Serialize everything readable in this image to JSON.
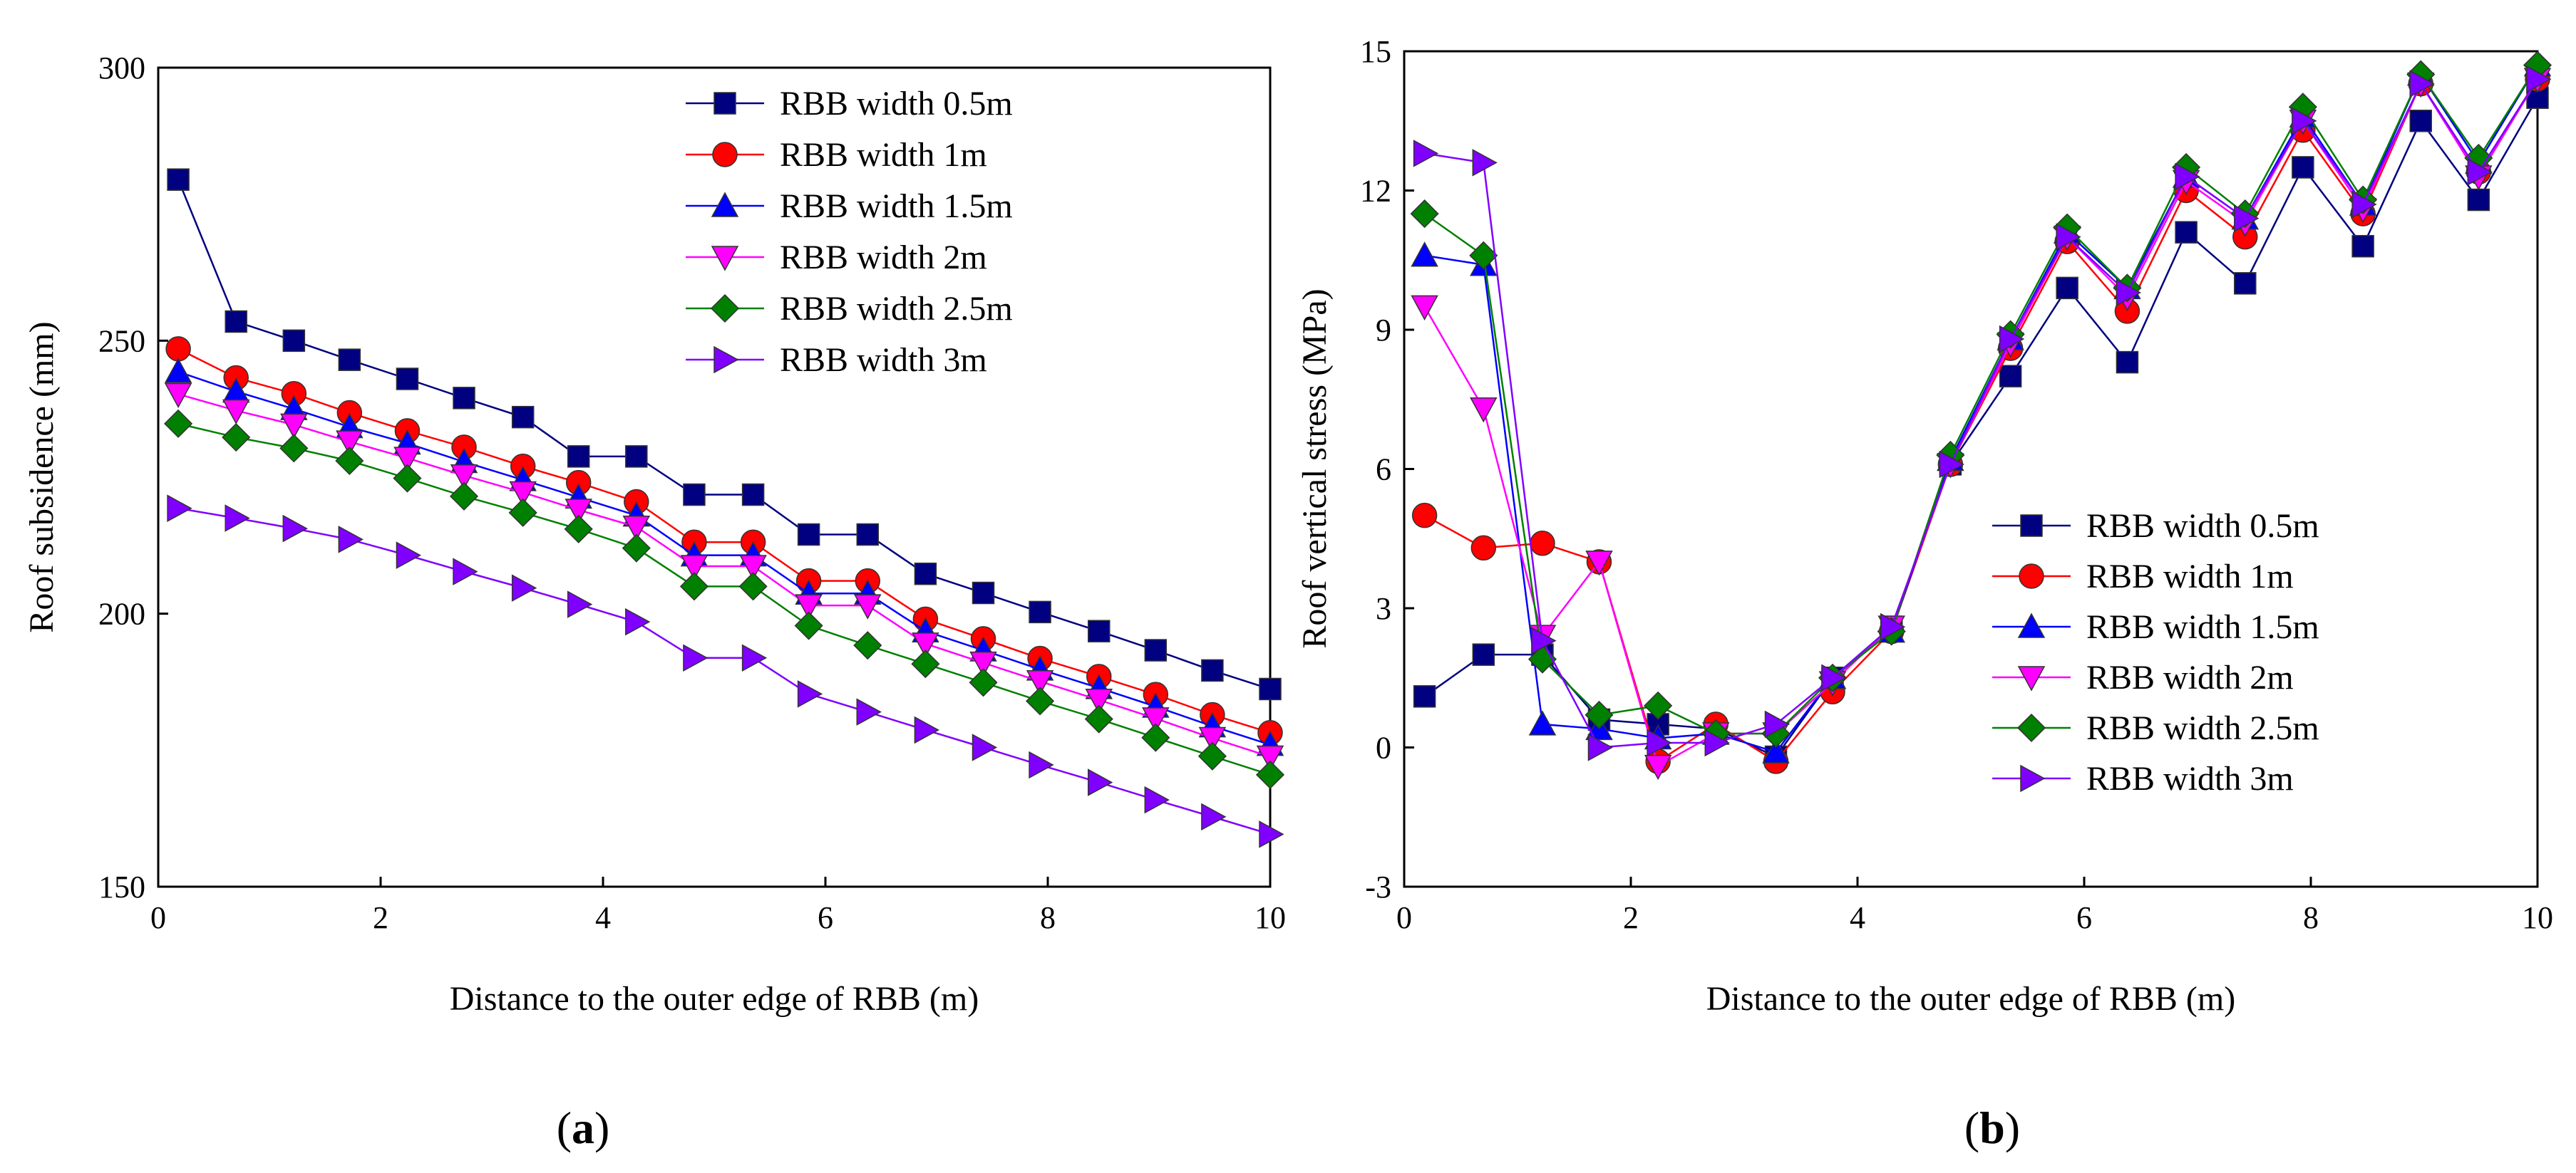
{
  "chart_data": [
    {
      "type": "line",
      "panel": "a",
      "xlabel": "Distance to the outer edge of RBB (m)",
      "ylabel": "Roof subsidence (mm)",
      "xlim": [
        0,
        10
      ],
      "ylim": [
        150,
        300
      ],
      "xticks": [
        0,
        2,
        4,
        6,
        8,
        10
      ],
      "yticks": [
        150,
        200,
        250,
        300
      ],
      "legend_position": "top-right",
      "x": [
        0.18,
        0.7,
        1.22,
        1.72,
        2.24,
        2.75,
        3.28,
        3.78,
        4.3,
        4.82,
        5.35,
        5.85,
        6.38,
        6.9,
        7.42,
        7.93,
        8.46,
        8.97,
        9.48,
        10.0
      ],
      "series": [
        {
          "name": "RBB width 0.5m",
          "color": "#000080",
          "marker": "square",
          "values": [
            279.5,
            253.5,
            250,
            246.5,
            243,
            239.5,
            236,
            228.8,
            228.8,
            221.8,
            221.8,
            214.5,
            214.5,
            207.3,
            203.8,
            200.3,
            196.8,
            193.3,
            189.6,
            186.2
          ]
        },
        {
          "name": "RBB width 1m",
          "color": "#ff0000",
          "marker": "circle",
          "values": [
            248.5,
            243.2,
            240.3,
            236.8,
            233.5,
            230.5,
            227,
            224,
            220.5,
            213.1,
            213.1,
            206,
            206,
            199,
            195.4,
            191.8,
            188.5,
            185.2,
            181.5,
            178.2
          ]
        },
        {
          "name": "RBB width 1.5m",
          "color": "#0000ff",
          "marker": "triangle-up",
          "values": [
            244.3,
            240.7,
            237.5,
            234.2,
            231.2,
            227.8,
            224.5,
            221.3,
            218,
            210.7,
            210.7,
            203.7,
            203.7,
            196.8,
            193.3,
            189.8,
            186.4,
            183,
            179.4,
            176
          ]
        },
        {
          "name": "RBB width 2m",
          "color": "#ff00ff",
          "marker": "triangle-down",
          "values": [
            240.2,
            237.2,
            234.6,
            231.5,
            228.5,
            225.3,
            222.2,
            219,
            215.9,
            208.7,
            208.7,
            201.5,
            201.5,
            194.5,
            191,
            187.6,
            184.2,
            180.8,
            177.2,
            173.8
          ]
        },
        {
          "name": "RBB width 2.5m",
          "color": "#008000",
          "marker": "diamond",
          "values": [
            234.8,
            232.3,
            230.3,
            228,
            224.8,
            221.5,
            218.5,
            215.5,
            212,
            205,
            205,
            197.8,
            194.2,
            190.8,
            187.4,
            184,
            180.7,
            177.3,
            173.9,
            170.5
          ]
        },
        {
          "name": "RBB width 3m",
          "color": "#8000ff",
          "marker": "triangle-right",
          "values": [
            219.3,
            217.5,
            215.6,
            213.6,
            210.7,
            207.7,
            204.7,
            201.7,
            198.5,
            191.9,
            191.9,
            185.3,
            182,
            178.7,
            175.5,
            172.3,
            169.1,
            165.9,
            162.8,
            159.6
          ]
        }
      ]
    },
    {
      "type": "line",
      "panel": "b",
      "xlabel": "Distance to the outer edge of RBB (m)",
      "ylabel": "Roof vertical stress (MPa)",
      "xlim": [
        0,
        10
      ],
      "ylim": [
        -3,
        15
      ],
      "xticks": [
        0,
        2,
        4,
        6,
        8,
        10
      ],
      "yticks": [
        -3,
        0,
        3,
        6,
        9,
        12,
        15
      ],
      "legend_position": "center-right",
      "x": [
        0.18,
        0.7,
        1.22,
        1.72,
        2.24,
        2.75,
        3.28,
        3.78,
        4.3,
        4.82,
        5.35,
        5.85,
        6.38,
        6.9,
        7.42,
        7.93,
        8.46,
        8.97,
        9.48,
        10.0
      ],
      "series": [
        {
          "name": "RBB width 0.5m",
          "color": "#000080",
          "marker": "square",
          "values": [
            1.1,
            2.0,
            2.0,
            0.6,
            0.5,
            0.4,
            -0.2,
            1.5,
            2.6,
            6.1,
            8.0,
            9.9,
            8.3,
            11.1,
            10.0,
            12.5,
            10.8,
            13.5,
            11.8,
            14.0
          ]
        },
        {
          "name": "RBB width 1m",
          "color": "#ff0000",
          "marker": "circle",
          "values": [
            5.0,
            4.3,
            4.4,
            4.0,
            -0.3,
            0.5,
            -0.3,
            1.2,
            2.5,
            6.1,
            8.6,
            10.9,
            9.4,
            12.0,
            11.0,
            13.3,
            11.5,
            14.3,
            12.4,
            14.4
          ]
        },
        {
          "name": "RBB width 1.5m",
          "color": "#0000ff",
          "marker": "triangle-up",
          "values": [
            10.6,
            10.4,
            0.5,
            0.4,
            0.2,
            0.3,
            -0.1,
            1.5,
            2.5,
            6.2,
            8.8,
            11.1,
            9.9,
            12.3,
            11.4,
            13.6,
            11.7,
            14.5,
            12.6,
            14.7
          ]
        },
        {
          "name": "RBB width 2m",
          "color": "#ff00ff",
          "marker": "triangle-down",
          "values": [
            9.5,
            7.3,
            2.4,
            4.0,
            -0.4,
            0.3,
            0.3,
            1.4,
            2.6,
            6.1,
            8.7,
            11.0,
            9.7,
            12.2,
            11.3,
            13.5,
            11.6,
            14.3,
            12.3,
            14.4
          ]
        },
        {
          "name": "RBB width 2.5m",
          "color": "#008000",
          "marker": "diamond",
          "values": [
            11.5,
            10.6,
            1.9,
            0.7,
            0.9,
            0.3,
            0.3,
            1.5,
            2.5,
            6.3,
            8.9,
            11.2,
            9.9,
            12.5,
            11.5,
            13.8,
            11.8,
            14.5,
            12.7,
            14.7
          ]
        },
        {
          "name": "RBB width 3m",
          "color": "#8000ff",
          "marker": "triangle-right",
          "values": [
            12.8,
            12.6,
            2.3,
            0.0,
            0.1,
            0.1,
            0.5,
            1.5,
            2.6,
            6.1,
            8.8,
            11.0,
            9.8,
            12.3,
            11.4,
            13.5,
            11.7,
            14.3,
            12.4,
            14.4
          ]
        }
      ]
    }
  ],
  "panel_labels": {
    "a": {
      "open": "(",
      "letter": "a",
      "close": ")"
    },
    "b": {
      "open": "(",
      "letter": "b",
      "close": ")"
    }
  }
}
